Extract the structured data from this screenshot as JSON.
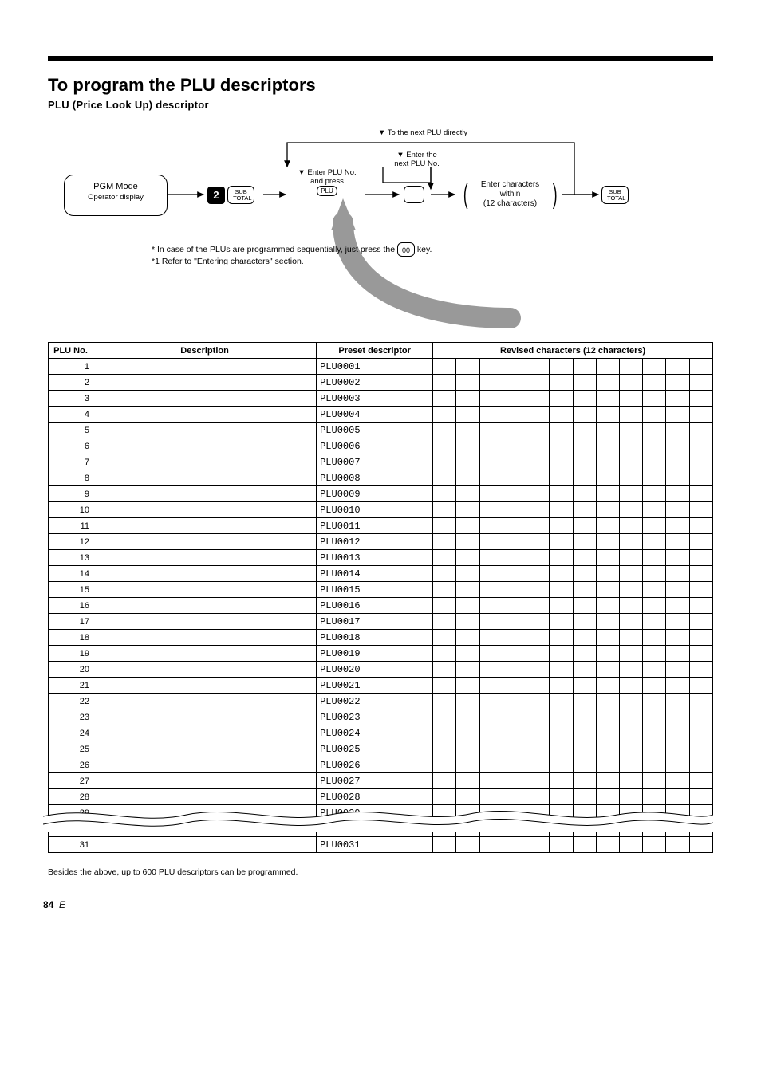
{
  "title": "To program the PLU descriptors",
  "subtitle": "PLU (Price Look Up) descriptor",
  "diagram": {
    "step1": {
      "line1": "PGM Mode",
      "line2": "Operator display"
    },
    "two_key": "2",
    "subtotal_key": "SUB\nTOTAL",
    "step2_label1": "▼ Enter PLU No.",
    "step2_label2": "and press",
    "plu_key": "PLU",
    "step3_label1": "▼ Enter the",
    "step3_label2": "next PLU No.",
    "plu_key2": " ",
    "step4": {
      "line1": "Enter characters",
      "line2": "(12 characters)",
      "line3": "within"
    },
    "step4_bracket_left": "(",
    "step4_bracket_right": ")",
    "step4_caption": "▼ To the next PLU directly",
    "seq_note1": "* In case of the PLUs are programmed sequentially, just press the",
    "key_00": "00",
    "seq_note2": "key.",
    "char_note": "*1 Refer to \"Entering characters\" section."
  },
  "worksheet": {
    "header": [
      "PLU No.",
      "Description",
      "Preset descriptor"
    ],
    "descriptor_header": "Revised characters (12 characters)",
    "rows_count": 31
  },
  "footnote": "Besides the above, up to 600 PLU descriptors can be programmed.",
  "page_number": "84",
  "page_label": "E"
}
